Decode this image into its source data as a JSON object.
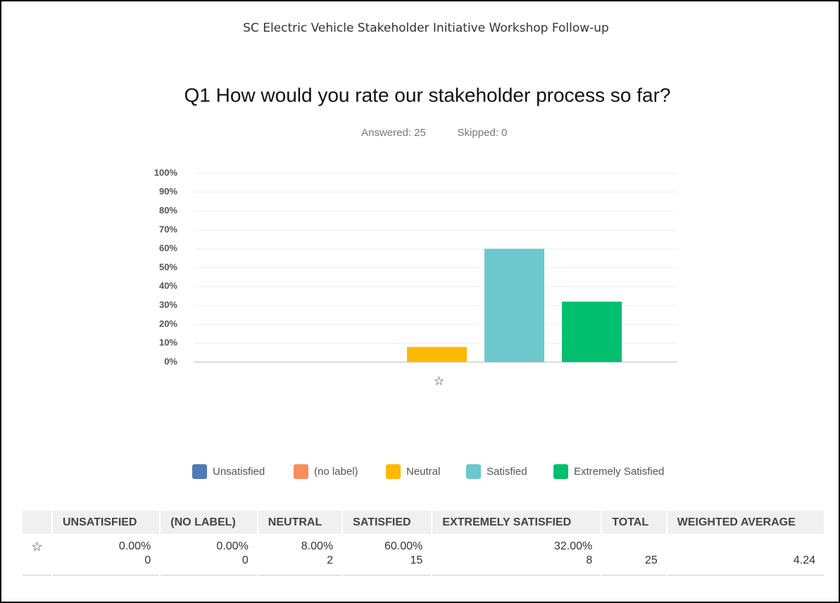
{
  "survey_title": "SC Electric Vehicle Stakeholder Initiative Workshop Follow-up",
  "chart_data": {
    "type": "bar",
    "title": "Q1 How would you rate our stakeholder process so far?",
    "answered": "Answered: 25",
    "skipped": "Skipped: 0",
    "categories": [
      "☆"
    ],
    "series": [
      {
        "name": "Unsatisfied",
        "color": "#4f7bb8",
        "values": [
          0
        ]
      },
      {
        "name": "(no label)",
        "color": "#f98d5c",
        "values": [
          0
        ]
      },
      {
        "name": "Neutral",
        "color": "#fdb900",
        "values": [
          8
        ]
      },
      {
        "name": "Satisfied",
        "color": "#6cc8cc",
        "values": [
          60
        ]
      },
      {
        "name": "Extremely Satisfied",
        "color": "#00bf6f",
        "values": [
          32
        ]
      }
    ],
    "ylim": [
      0,
      100
    ],
    "yticks": [
      {
        "value": 0,
        "label": "0%"
      },
      {
        "value": 10,
        "label": "10%"
      },
      {
        "value": 20,
        "label": "20%"
      },
      {
        "value": 30,
        "label": "30%"
      },
      {
        "value": 40,
        "label": "40%"
      },
      {
        "value": 50,
        "label": "50%"
      },
      {
        "value": 60,
        "label": "60%"
      },
      {
        "value": 70,
        "label": "70%"
      },
      {
        "value": 80,
        "label": "80%"
      },
      {
        "value": 90,
        "label": "90%"
      },
      {
        "value": 100,
        "label": "100%"
      }
    ],
    "grid": true
  },
  "table": {
    "columns": [
      "UNSATISFIED",
      "(NO LABEL)",
      "NEUTRAL",
      "SATISFIED",
      "EXTREMELY SATISFIED",
      "TOTAL",
      "WEIGHTED AVERAGE"
    ],
    "rows": [
      {
        "marker": "☆",
        "cells": [
          {
            "percent": "0.00%",
            "count": 0
          },
          {
            "percent": "0.00%",
            "count": 0
          },
          {
            "percent": "8.00%",
            "count": 2
          },
          {
            "percent": "60.00%",
            "count": 15
          },
          {
            "percent": "32.00%",
            "count": 8
          }
        ],
        "total": 25,
        "weighted_average": 4.24
      }
    ]
  }
}
